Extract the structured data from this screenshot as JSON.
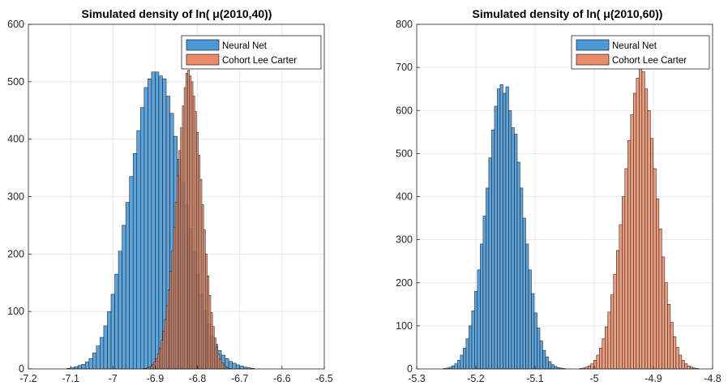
{
  "chart_data": [
    {
      "type": "histogram",
      "title": "Simulated density of ln( μ(2010,40))",
      "xlabel": "",
      "ylabel": "",
      "xlim": [
        -7.2,
        -6.5
      ],
      "ylim": [
        0,
        600
      ],
      "xticks": [
        -7.2,
        -7.1,
        -7.0,
        -6.9,
        -6.8,
        -6.7,
        -6.6,
        -6.5
      ],
      "yticks": [
        0,
        100,
        200,
        300,
        400,
        500,
        600
      ],
      "xtick_labels": [
        "-7.2",
        "-7.1",
        "-7",
        "-6.9",
        "-6.8",
        "-6.7",
        "-6.6",
        "-6.5"
      ],
      "ytick_labels": [
        "0",
        "100",
        "200",
        "300",
        "400",
        "500",
        "600"
      ],
      "grid": true,
      "legend_position": "top-right",
      "series": [
        {
          "name": "Neural Net",
          "color": "#4b9ad8",
          "bin_width": 0.0087,
          "bin_start": -7.1088,
          "values": [
            1,
            2,
            4,
            6,
            8,
            12,
            18,
            28,
            40,
            55,
            75,
            100,
            130,
            165,
            205,
            250,
            290,
            335,
            375,
            415,
            455,
            490,
            505,
            517,
            517,
            510,
            505,
            475,
            445,
            405,
            365,
            325,
            285,
            245,
            205,
            165,
            130,
            102,
            78,
            58,
            43,
            32,
            24,
            18,
            13,
            10,
            7,
            5,
            3,
            2,
            1
          ]
        },
        {
          "name": "Cohort Lee Carter",
          "color": "#e98b68",
          "bin_width": 0.0042,
          "bin_start": -6.9282,
          "values": [
            1,
            1,
            2,
            3,
            5,
            8,
            12,
            18,
            26,
            36,
            50,
            66,
            86,
            110,
            138,
            170,
            206,
            246,
            290,
            336,
            380,
            420,
            458,
            490,
            515,
            520,
            510,
            500,
            475,
            448,
            412,
            372,
            330,
            286,
            242,
            200,
            162,
            128,
            98,
            74,
            54,
            38,
            26,
            17,
            11,
            7,
            4,
            2,
            1
          ]
        }
      ]
    },
    {
      "type": "histogram",
      "title": "Simulated density of ln( μ(2010,60))",
      "xlabel": "",
      "ylabel": "",
      "xlim": [
        -5.3,
        -4.8
      ],
      "ylim": [
        0,
        800
      ],
      "xticks": [
        -5.3,
        -5.2,
        -5.1,
        -5.0,
        -4.9,
        -4.8
      ],
      "yticks": [
        0,
        100,
        200,
        300,
        400,
        500,
        600,
        700,
        800
      ],
      "xtick_labels": [
        "-5.3",
        "-5.2",
        "-5.1",
        "-5",
        "-4.9",
        "-4.8"
      ],
      "ytick_labels": [
        "0",
        "100",
        "200",
        "300",
        "400",
        "500",
        "600",
        "700",
        "800"
      ],
      "grid": true,
      "legend_position": "top-right",
      "series": [
        {
          "name": "Neural Net",
          "color": "#4b9ad8",
          "bin_width": 0.0048,
          "bin_start": -5.255,
          "values": [
            1,
            2,
            4,
            7,
            12,
            20,
            32,
            48,
            70,
            100,
            135,
            180,
            230,
            290,
            355,
            420,
            490,
            555,
            610,
            650,
            660,
            640,
            655,
            600,
            560,
            545,
            480,
            420,
            350,
            290,
            230,
            175,
            130,
            95,
            65,
            43,
            28,
            17,
            10,
            6,
            3,
            2,
            1
          ]
        },
        {
          "name": "Cohort Lee Carter",
          "color": "#e98b68",
          "bin_width": 0.0048,
          "bin_start": -5.025,
          "values": [
            1,
            2,
            4,
            7,
            12,
            20,
            32,
            48,
            70,
            98,
            132,
            172,
            220,
            275,
            335,
            400,
            465,
            530,
            590,
            640,
            675,
            705,
            690,
            650,
            600,
            535,
            465,
            395,
            325,
            260,
            200,
            150,
            108,
            75,
            50,
            32,
            20,
            12,
            7,
            4,
            2,
            1
          ]
        }
      ]
    }
  ]
}
